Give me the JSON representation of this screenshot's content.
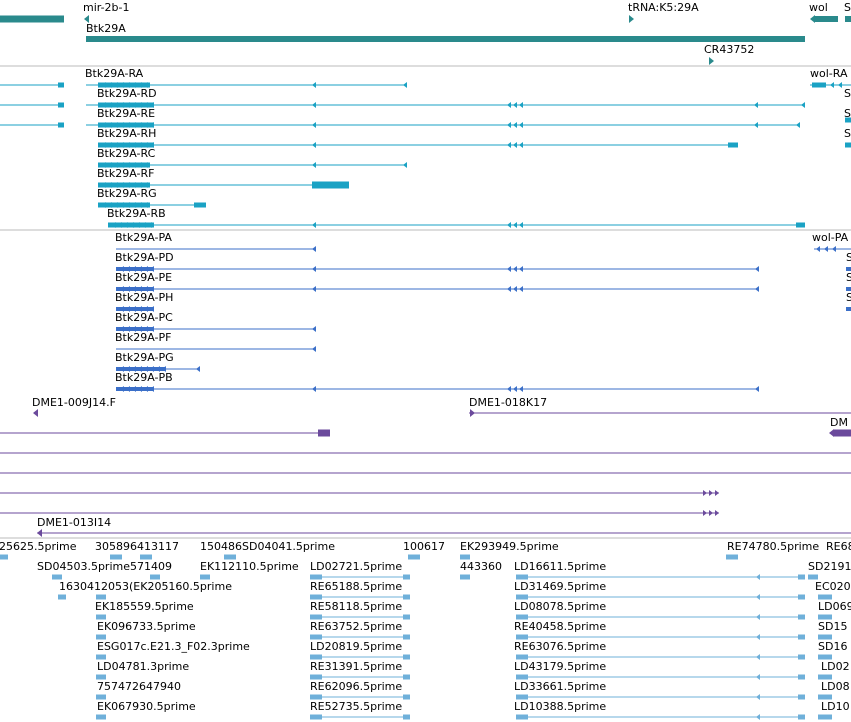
{
  "colors": {
    "gene": "#2a8a8c",
    "transcript": "#1aa2c4",
    "protein": "#3b6fc8",
    "clone": "#6b4a9c",
    "cdna": "#6fb0da",
    "divider": "#bbbbbb"
  },
  "gene_track": {
    "genes": [
      {
        "label": "mir-2b-1",
        "strand": "-"
      },
      {
        "label": "Btk29A",
        "strand": "-"
      },
      {
        "label": "tRNA:K5:29A",
        "strand": "+"
      },
      {
        "label": "CR43752",
        "strand": "+"
      },
      {
        "label": "wol",
        "strand": "-"
      },
      {
        "label": "S",
        "strand": "-"
      }
    ]
  },
  "transcript_track": {
    "transcripts": [
      {
        "label": "Btk29A-RA"
      },
      {
        "label": "Btk29A-RD"
      },
      {
        "label": "Btk29A-RE"
      },
      {
        "label": "Btk29A-RH"
      },
      {
        "label": "Btk29A-RC"
      },
      {
        "label": "Btk29A-RF"
      },
      {
        "label": "Btk29A-RG"
      },
      {
        "label": "Btk29A-RB"
      },
      {
        "label": "wol-RA"
      },
      {
        "label": "S"
      },
      {
        "label": "S"
      },
      {
        "label": "S"
      }
    ]
  },
  "protein_track": {
    "proteins": [
      {
        "label": "Btk29A-PA"
      },
      {
        "label": "Btk29A-PD"
      },
      {
        "label": "Btk29A-PE"
      },
      {
        "label": "Btk29A-PH"
      },
      {
        "label": "Btk29A-PC"
      },
      {
        "label": "Btk29A-PF"
      },
      {
        "label": "Btk29A-PG"
      },
      {
        "label": "Btk29A-PB"
      },
      {
        "label": "wol-PA"
      },
      {
        "label": "S"
      },
      {
        "label": "S"
      },
      {
        "label": "S"
      }
    ]
  },
  "clone_track": {
    "clones": [
      {
        "label": "DME1-009J14.F"
      },
      {
        "label": "DME1-018K17"
      },
      {
        "label": "DM"
      },
      {
        "label": "DME1-013I14"
      }
    ]
  },
  "est_track": {
    "labels": [
      "25625.5prime",
      "305896413117",
      "150486SD04041.5prime",
      "100617",
      "EK293949.5prime",
      "RE74780.5prime",
      "RE68",
      "SD04503.5prime571409",
      "EK112110.5prime",
      "LD02721.5prime",
      "443360",
      "LD16611.5prime",
      "SD2191",
      "1630412053(EK205160.5prime",
      "RE65188.5prime",
      "LD31469.5prime",
      "EC020",
      "EK185559.5prime",
      "RE58118.5prime",
      "LD08078.5prime",
      "LD069",
      "EK096733.5prime",
      "RE63752.5prime",
      "RE40458.5prime",
      "SD15",
      "ESG017c.E21.3_F02.3prime",
      "LD20819.5prime",
      "RE63076.5prime",
      "SD16",
      "LD04781.3prime",
      "RE31391.5prime",
      "LD43179.5prime",
      "LD02",
      "757472647940",
      "RE62096.5prime",
      "LD33661.5prime",
      "LD08",
      "EK067930.5prime",
      "RE52735.5prime",
      "LD10388.5prime",
      "LD10"
    ]
  }
}
